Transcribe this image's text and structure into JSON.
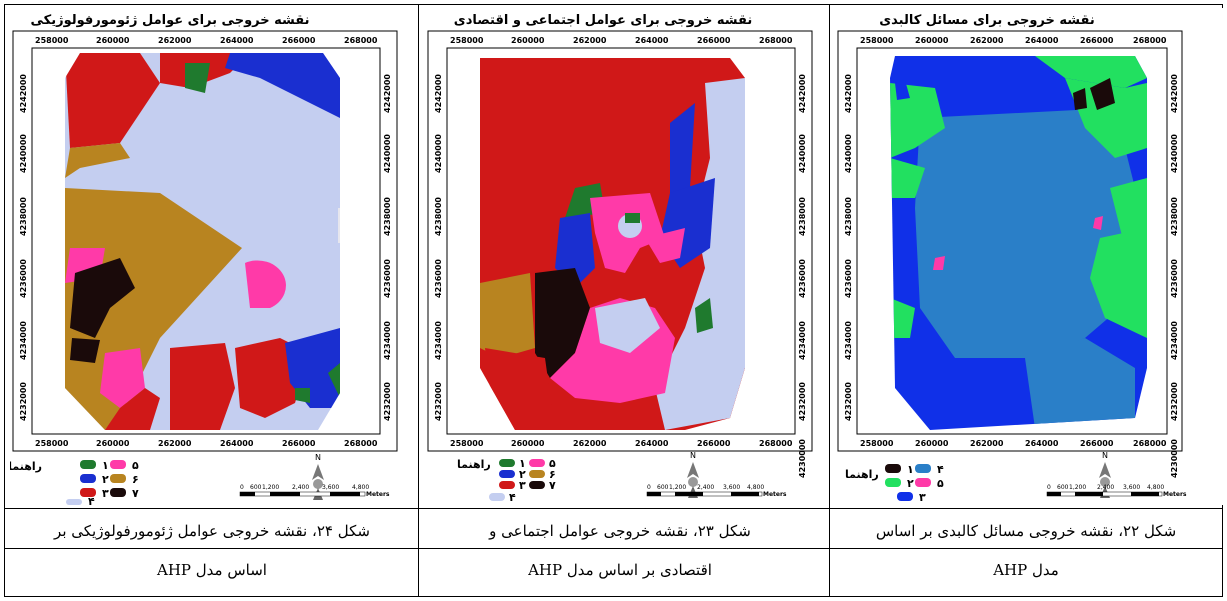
{
  "panels": [
    {
      "title": "نقشه خروجی برای عوامل ژئومورفولوژیکی",
      "x_ticks": [
        "258000",
        "260000",
        "262000",
        "264000",
        "266000",
        "268000"
      ],
      "y_ticks": [
        "4242000",
        "4240000",
        "4238000",
        "4236000",
        "4234000",
        "4232000"
      ],
      "legend_title": "راهنما",
      "legend_items": [
        {
          "label": "١",
          "color": "#1f7a2e"
        },
        {
          "label": "٢",
          "color": "#1a2fd0"
        },
        {
          "label": "٣",
          "color": "#d01818"
        },
        {
          "label": "۴",
          "color": "#c4cef0"
        },
        {
          "label": "۵",
          "color": "#ff3aa8"
        },
        {
          "label": "۶",
          "color": "#b88420"
        },
        {
          "label": "٧",
          "color": "#1a0a0a"
        }
      ],
      "scale_labels": [
        "0",
        "600",
        "1,200",
        "2,400",
        "3,600",
        "4,800"
      ],
      "scale_unit": "Meters",
      "caption_line1": "شکل ٢۴، نقشه خروجی عوامل ژئومورفولوژیکی بر",
      "caption_line2": "اساس مدل AHP"
    },
    {
      "title": "نقشه خروجی برای عوامل اجتماعی و اقتصادی",
      "x_ticks": [
        "258000",
        "260000",
        "262000",
        "264000",
        "266000",
        "268000"
      ],
      "y_ticks": [
        "4242000",
        "4240000",
        "4238000",
        "4236000",
        "4234000",
        "4232000",
        "4230000"
      ],
      "legend_title": "راهنما",
      "legend_items": [
        {
          "label": "١",
          "color": "#1f7a2e"
        },
        {
          "label": "٢",
          "color": "#1a2fd0"
        },
        {
          "label": "٣",
          "color": "#d01818"
        },
        {
          "label": "۴",
          "color": "#c4cef0"
        },
        {
          "label": "۵",
          "color": "#ff3aa8"
        },
        {
          "label": "۶",
          "color": "#b88420"
        },
        {
          "label": "٧",
          "color": "#1a0a0a"
        }
      ],
      "scale_labels": [
        "0",
        "600",
        "1,200",
        "2,400",
        "3,600",
        "4,800"
      ],
      "scale_unit": "Meters",
      "caption_line1": "شکل ٢٣، نقشه خروجی عوامل اجتماعی و",
      "caption_line2": "اقتصادی بر اساس مدل AHP"
    },
    {
      "title": "نقشه خروجی برای مسائل کالبدی",
      "x_ticks": [
        "258000",
        "260000",
        "262000",
        "264000",
        "266000",
        "268000"
      ],
      "y_ticks": [
        "4242000",
        "4240000",
        "4238000",
        "4236000",
        "4234000",
        "4232000",
        "4230000"
      ],
      "legend_title": "راهنما",
      "legend_items": [
        {
          "label": "١",
          "color": "#1a0a0a"
        },
        {
          "label": "٢",
          "color": "#22e060"
        },
        {
          "label": "٣",
          "color": "#1030e8"
        },
        {
          "label": "۴",
          "color": "#2a7fc8"
        },
        {
          "label": "۵",
          "color": "#ff3aa8"
        }
      ],
      "scale_labels": [
        "0",
        "600",
        "1,200",
        "2,400",
        "3,600",
        "4,800"
      ],
      "scale_unit": "Meters",
      "caption_line1": "شکل ٢٢، نقشه خروجی مسائل کالبدی بر اساس",
      "caption_line2": "مدل AHP"
    }
  ],
  "north_label": "N"
}
